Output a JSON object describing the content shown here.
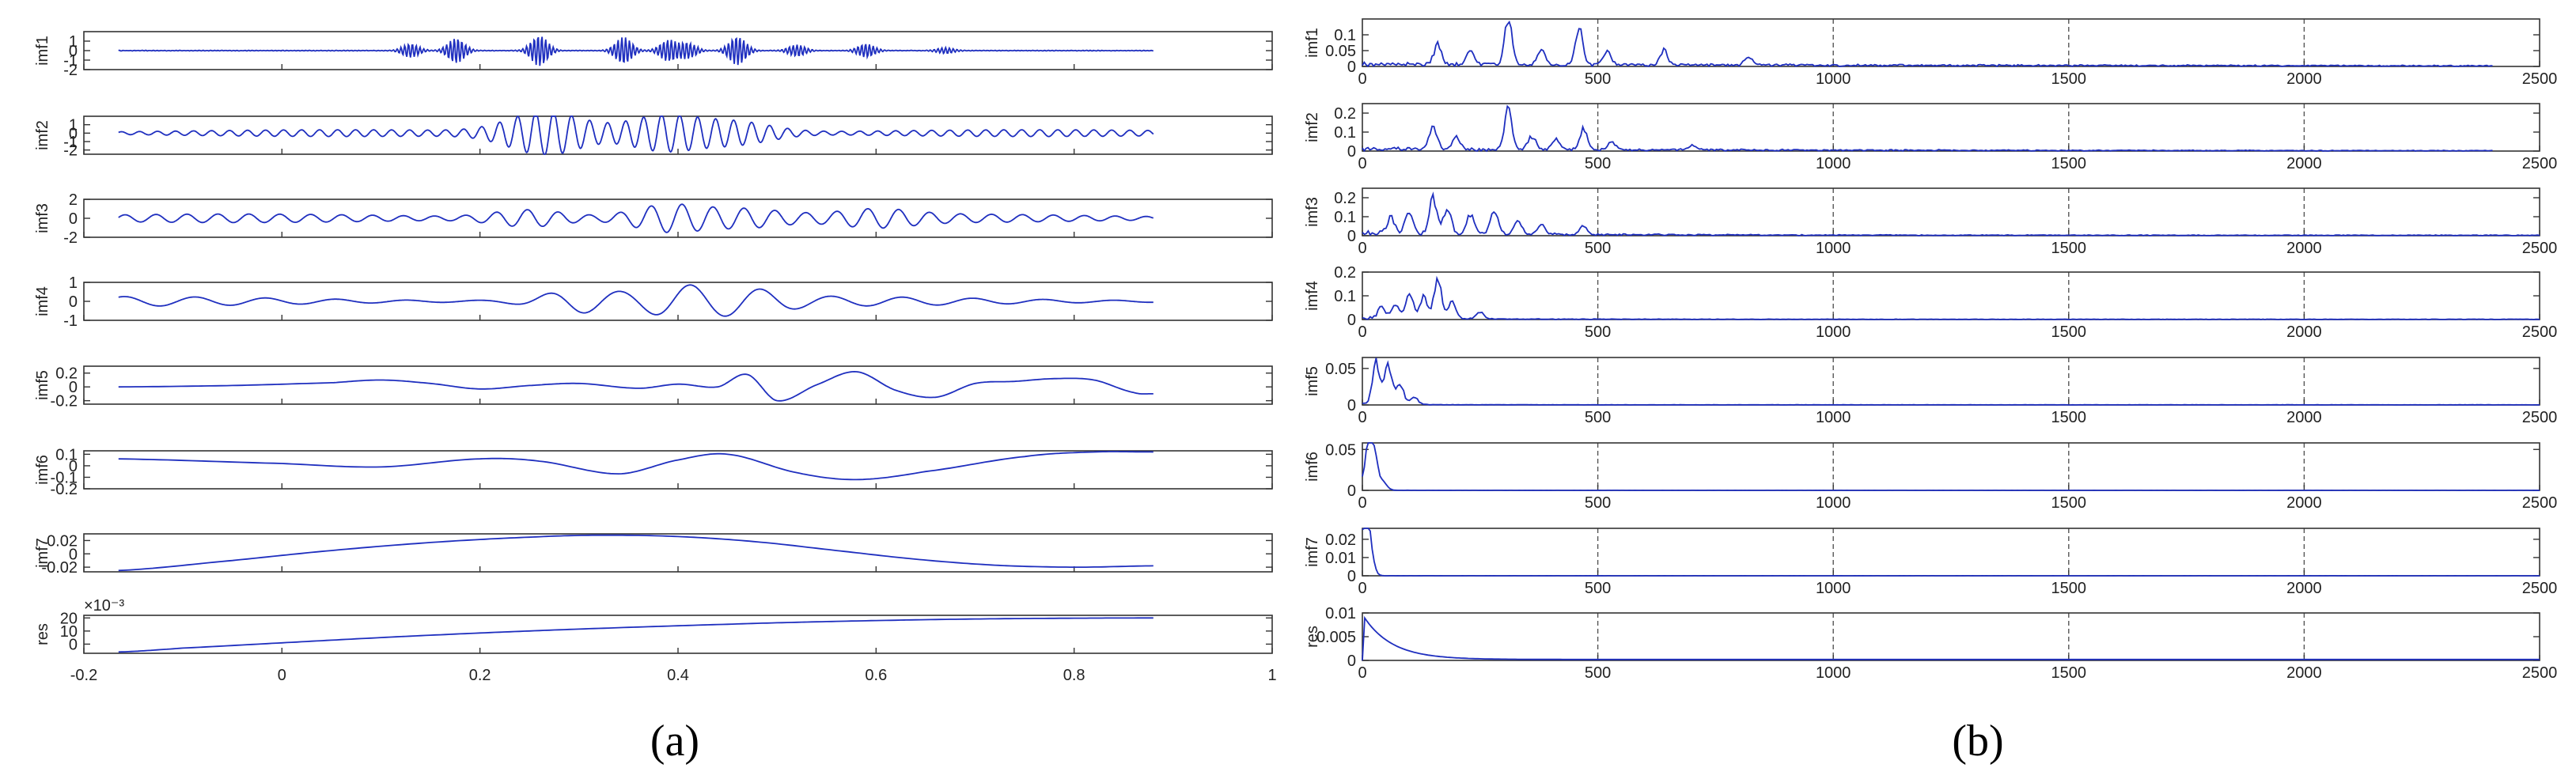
{
  "captions": {
    "a": "(a)",
    "b": "(b)"
  },
  "colors": {
    "line": "#1f2fbf",
    "frame": "#333333",
    "grid": "#555555"
  },
  "chart_data": [
    {
      "type": "line",
      "panel": "a",
      "xlim": [
        -0.2,
        1
      ],
      "xticks": [
        -0.2,
        0,
        0.2,
        0.4,
        0.6,
        0.8,
        1
      ],
      "xtick_labels": [
        "-0.2",
        "0",
        "0.2",
        "0.4",
        "0.6",
        "0.8",
        "1"
      ],
      "grid": false,
      "data_xrange": [
        -0.165,
        0.88
      ],
      "subplots": [
        {
          "label": "imf1",
          "ylim": [
            -2,
            2
          ],
          "yticks": [
            "1",
            "0",
            "-1",
            "-2"
          ],
          "tickvals": [
            1,
            0,
            -1,
            -2
          ],
          "series": {
            "kind": "bursts",
            "amp": 1.6,
            "base": 0,
            "bursts": [
              [
                0.13,
                0.7
              ],
              [
                0.176,
                1.3
              ],
              [
                0.26,
                1.6
              ],
              [
                0.345,
                1.4
              ],
              [
                0.39,
                1.1
              ],
              [
                0.41,
                0.8
              ],
              [
                0.46,
                1.5
              ],
              [
                0.52,
                0.6
              ],
              [
                0.59,
                0.7
              ],
              [
                0.67,
                0.3
              ]
            ]
          }
        },
        {
          "label": "imf2",
          "ylim": [
            -2.5,
            2
          ],
          "yticks": [
            "1",
            "0",
            "-1",
            "-2"
          ],
          "tickvals": [
            1,
            0,
            -1,
            -2
          ],
          "series": {
            "kind": "osc",
            "amp": 0.4,
            "freq": 55,
            "bursts": [
              [
                0.26,
                1.6
              ],
              [
                0.385,
                2.0
              ],
              [
                0.46,
                1.2
              ],
              [
                0.28,
                0.9
              ]
            ]
          }
        },
        {
          "label": "imf3",
          "ylim": [
            -2,
            2
          ],
          "yticks": [
            "2",
            "0",
            "-2"
          ],
          "tickvals": [
            2,
            0,
            -2
          ],
          "series": {
            "kind": "osc",
            "amp": 0.45,
            "freq": 32,
            "bursts": [
              [
                0.25,
                0.8
              ],
              [
                0.39,
                1.3
              ],
              [
                0.47,
                0.7
              ],
              [
                0.6,
                0.6
              ]
            ]
          }
        },
        {
          "label": "imf4",
          "ylim": [
            -1,
            1
          ],
          "yticks": [
            "1",
            "0",
            "-1"
          ],
          "tickvals": [
            1,
            0,
            -1
          ],
          "series": {
            "kind": "osc",
            "amp": 0.25,
            "freq": 14,
            "bursts": [
              [
                0.3,
                0.5
              ],
              [
                0.4,
                0.6
              ],
              [
                0.47,
                0.4
              ]
            ]
          }
        },
        {
          "label": "imf5",
          "ylim": [
            -0.25,
            0.3
          ],
          "yticks": [
            "0.2",
            "0",
            "-0.2"
          ],
          "tickvals": [
            0.2,
            0,
            -0.2
          ],
          "series": {
            "kind": "points",
            "x": [
              -0.165,
              -0.05,
              0.05,
              0.1,
              0.15,
              0.2,
              0.25,
              0.3,
              0.36,
              0.4,
              0.44,
              0.47,
              0.5,
              0.54,
              0.58,
              0.62,
              0.66,
              0.7,
              0.74,
              0.78,
              0.82,
              0.86,
              0.88
            ],
            "y": [
              0.0,
              0.02,
              0.06,
              0.1,
              0.05,
              -0.03,
              0.02,
              0.05,
              -0.02,
              0.04,
              0.0,
              0.18,
              -0.2,
              0.03,
              0.22,
              -0.05,
              -0.15,
              0.05,
              0.08,
              0.12,
              0.1,
              -0.08,
              -0.1
            ]
          }
        },
        {
          "label": "imf6",
          "ylim": [
            -0.2,
            0.13
          ],
          "yticks": [
            "0.1",
            "0",
            "-0.1",
            "-0.2"
          ],
          "tickvals": [
            0.1,
            0,
            -0.1,
            -0.2
          ],
          "series": {
            "kind": "points",
            "x": [
              -0.165,
              0.0,
              0.1,
              0.2,
              0.26,
              0.34,
              0.4,
              0.45,
              0.52,
              0.58,
              0.65,
              0.75,
              0.82,
              0.88
            ],
            "y": [
              0.06,
              0.02,
              -0.01,
              0.06,
              0.04,
              -0.07,
              0.05,
              0.1,
              -0.06,
              -0.12,
              -0.05,
              0.08,
              0.12,
              0.12
            ]
          }
        },
        {
          "label": "imf7",
          "ylim": [
            -0.027,
            0.03
          ],
          "yticks": [
            "0.02",
            "0",
            "-0.02"
          ],
          "tickvals": [
            0.02,
            0,
            -0.02
          ],
          "series": {
            "kind": "points",
            "x": [
              -0.165,
              -0.05,
              0.05,
              0.15,
              0.25,
              0.32,
              0.4,
              0.48,
              0.56,
              0.64,
              0.72,
              0.8,
              0.88
            ],
            "y": [
              -0.025,
              -0.01,
              0.005,
              0.017,
              0.025,
              0.028,
              0.026,
              0.018,
              0.005,
              -0.008,
              -0.017,
              -0.02,
              -0.018
            ]
          }
        },
        {
          "label": "res",
          "exponent": "×10⁻³",
          "ylim": [
            -7,
            22
          ],
          "yticks": [
            "20",
            "10",
            "0"
          ],
          "tickvals": [
            20,
            10,
            0
          ],
          "series": {
            "kind": "points",
            "x": [
              -0.165,
              -0.1,
              0.0,
              0.1,
              0.2,
              0.3,
              0.4,
              0.5,
              0.6,
              0.7,
              0.8,
              0.88
            ],
            "y": [
              -6,
              -3,
              1,
              5,
              8.5,
              11.5,
              14,
              16.3,
              18,
              19.2,
              19.8,
              20
            ]
          }
        }
      ]
    },
    {
      "type": "line",
      "panel": "b",
      "xlim": [
        0,
        2500
      ],
      "xticks": [
        0,
        500,
        1000,
        1500,
        2000,
        2500
      ],
      "xtick_labels": [
        "0",
        "500",
        "1000",
        "1500",
        "2000",
        "2500"
      ],
      "grid": true,
      "subplots": [
        {
          "label": "imf1",
          "ylim": [
            0,
            0.15
          ],
          "yticks": [
            "0.1",
            "0.05",
            "0"
          ],
          "tickvals": [
            0.1,
            0.05,
            0
          ],
          "series": {
            "kind": "spectrum",
            "end": 2400,
            "noise": 0.012,
            "decay": 1400,
            "peaks": [
              [
                160,
                0.07
              ],
              [
                230,
                0.05
              ],
              [
                310,
                0.155
              ],
              [
                380,
                0.06
              ],
              [
                460,
                0.13
              ],
              [
                520,
                0.05
              ],
              [
                640,
                0.05
              ],
              [
                820,
                0.03
              ]
            ]
          }
        },
        {
          "label": "imf2",
          "ylim": [
            0,
            0.25
          ],
          "yticks": [
            "0.2",
            "0.1",
            "0"
          ],
          "tickvals": [
            0.2,
            0.1,
            0
          ],
          "series": {
            "kind": "spectrum",
            "end": 2400,
            "noise": 0.02,
            "decay": 900,
            "peaks": [
              [
                150,
                0.14
              ],
              [
                200,
                0.07
              ],
              [
                310,
                0.24
              ],
              [
                360,
                0.08
              ],
              [
                410,
                0.06
              ],
              [
                470,
                0.12
              ],
              [
                530,
                0.05
              ],
              [
                700,
                0.03
              ]
            ]
          }
        },
        {
          "label": "imf3",
          "ylim": [
            0,
            0.25
          ],
          "yticks": [
            "0.2",
            "0.1",
            "0"
          ],
          "tickvals": [
            0.2,
            0.1,
            0
          ],
          "series": {
            "kind": "spectrum",
            "end": 2500,
            "noise": 0.025,
            "decay": 450,
            "peaks": [
              [
                60,
                0.1
              ],
              [
                100,
                0.14
              ],
              [
                150,
                0.21
              ],
              [
                180,
                0.15
              ],
              [
                230,
                0.12
              ],
              [
                280,
                0.14
              ],
              [
                330,
                0.08
              ],
              [
                380,
                0.06
              ],
              [
                470,
                0.05
              ]
            ]
          }
        },
        {
          "label": "imf4",
          "ylim": [
            0,
            0.2
          ],
          "yticks": [
            "0.2",
            "0.1",
            "0"
          ],
          "tickvals": [
            0.2,
            0.1,
            0
          ],
          "series": {
            "kind": "spectrum",
            "end": 2500,
            "noise": 0.012,
            "decay": 220,
            "peaks": [
              [
                40,
                0.05
              ],
              [
                70,
                0.06
              ],
              [
                100,
                0.12
              ],
              [
                130,
                0.1
              ],
              [
                160,
                0.18
              ],
              [
                190,
                0.08
              ],
              [
                250,
                0.03
              ]
            ]
          }
        },
        {
          "label": "imf5",
          "ylim": [
            0,
            0.065
          ],
          "yticks": [
            "0.05",
            "0"
          ],
          "tickvals": [
            0.05,
            0
          ],
          "series": {
            "kind": "spectrum",
            "end": 2500,
            "noise": 0.002,
            "decay": 120,
            "peaks": [
              [
                30,
                0.065
              ],
              [
                55,
                0.06
              ],
              [
                80,
                0.03
              ],
              [
                110,
                0.012
              ]
            ]
          }
        },
        {
          "label": "imf6",
          "ylim": [
            0,
            0.058
          ],
          "yticks": [
            "0.05",
            "0"
          ],
          "tickvals": [
            0.05,
            0
          ],
          "series": {
            "kind": "spectrum",
            "end": 2500,
            "noise": 0.0005,
            "decay": 60,
            "peaks": [
              [
                12,
                0.055
              ],
              [
                25,
                0.05
              ],
              [
                45,
                0.01
              ]
            ]
          }
        },
        {
          "label": "imf7",
          "ylim": [
            0,
            0.026
          ],
          "yticks": [
            "0.02",
            "0.01",
            "0"
          ],
          "tickvals": [
            0.02,
            0.01,
            0
          ],
          "series": {
            "kind": "spectrum",
            "end": 2500,
            "noise": 0.0002,
            "decay": 30,
            "peaks": [
              [
                5,
                0.025
              ],
              [
                12,
                0.02
              ],
              [
                20,
                0.003
              ]
            ]
          }
        },
        {
          "label": "res",
          "ylim": [
            0,
            0.01
          ],
          "yticks": [
            "0.01",
            "0.005",
            "0"
          ],
          "tickvals": [
            0.01,
            0.005,
            0
          ],
          "series": {
            "kind": "decay",
            "end": 2500,
            "peak": 0.0095,
            "tau": 60
          }
        }
      ]
    }
  ]
}
